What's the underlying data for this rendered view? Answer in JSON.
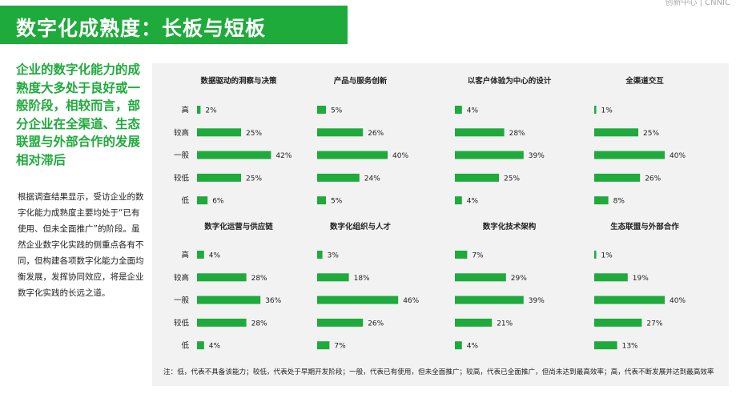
{
  "header": {
    "title": "数字化成熟度：长板与短板",
    "corner_text": "创新中心 | CNNIC"
  },
  "summary": "企业的数字化能力的成熟度大多处于良好或一般阶段，相较而言，部分企业在全渠道、生态联盟与外部合作的发展相对滞后",
  "body_text": "根据调查结果显示，受访企业的数字化能力成熟度主要均处于“已有使用、但未全面推广”的阶段。虽然企业数字化实践的侧重点各有不同，但构建各项数字化能力全面均衡发展，发挥协同效应，将是企业数字化实践的长远之道。",
  "footnote": "注：低，代表不具备该能力；较低，代表处于早期开发阶段；一般，代表已有使用，但未全面推广；较高，代表已全面推广，但尚未达到最高效率；高，代表不断发展并达到最高效率",
  "colors": {
    "accent": "#1faa3c",
    "panel": "#f2f2f2"
  },
  "chart_data": [
    {
      "type": "bar",
      "title": "数据驱动的洞察与决策",
      "categories": [
        "高",
        "较高",
        "一般",
        "较低",
        "低"
      ],
      "values": [
        2,
        25,
        42,
        25,
        6
      ],
      "unit": "%"
    },
    {
      "type": "bar",
      "title": "产品与服务创新",
      "categories": [
        "高",
        "较高",
        "一般",
        "较低",
        "低"
      ],
      "values": [
        5,
        26,
        40,
        24,
        5
      ],
      "unit": "%"
    },
    {
      "type": "bar",
      "title": "以客户体验为中心的设计",
      "categories": [
        "高",
        "较高",
        "一般",
        "较低",
        "低"
      ],
      "values": [
        4,
        28,
        39,
        25,
        4
      ],
      "unit": "%"
    },
    {
      "type": "bar",
      "title": "全渠道交互",
      "categories": [
        "高",
        "较高",
        "一般",
        "较低",
        "低"
      ],
      "values": [
        1,
        25,
        40,
        26,
        8
      ],
      "unit": "%"
    },
    {
      "type": "bar",
      "title": "数字化运营与供应链",
      "categories": [
        "高",
        "较高",
        "一般",
        "较低",
        "低"
      ],
      "values": [
        4,
        28,
        36,
        28,
        4
      ],
      "unit": "%"
    },
    {
      "type": "bar",
      "title": "数字化组织与人才",
      "categories": [
        "高",
        "较高",
        "一般",
        "较低",
        "低"
      ],
      "values": [
        3,
        18,
        46,
        26,
        7
      ],
      "unit": "%"
    },
    {
      "type": "bar",
      "title": "数字化技术架构",
      "categories": [
        "高",
        "较高",
        "一般",
        "较低",
        "低"
      ],
      "values": [
        7,
        29,
        39,
        21,
        4
      ],
      "unit": "%"
    },
    {
      "type": "bar",
      "title": "生态联盟与外部合作",
      "categories": [
        "高",
        "较高",
        "一般",
        "较低",
        "低"
      ],
      "values": [
        1,
        19,
        40,
        27,
        13
      ],
      "unit": "%"
    }
  ]
}
